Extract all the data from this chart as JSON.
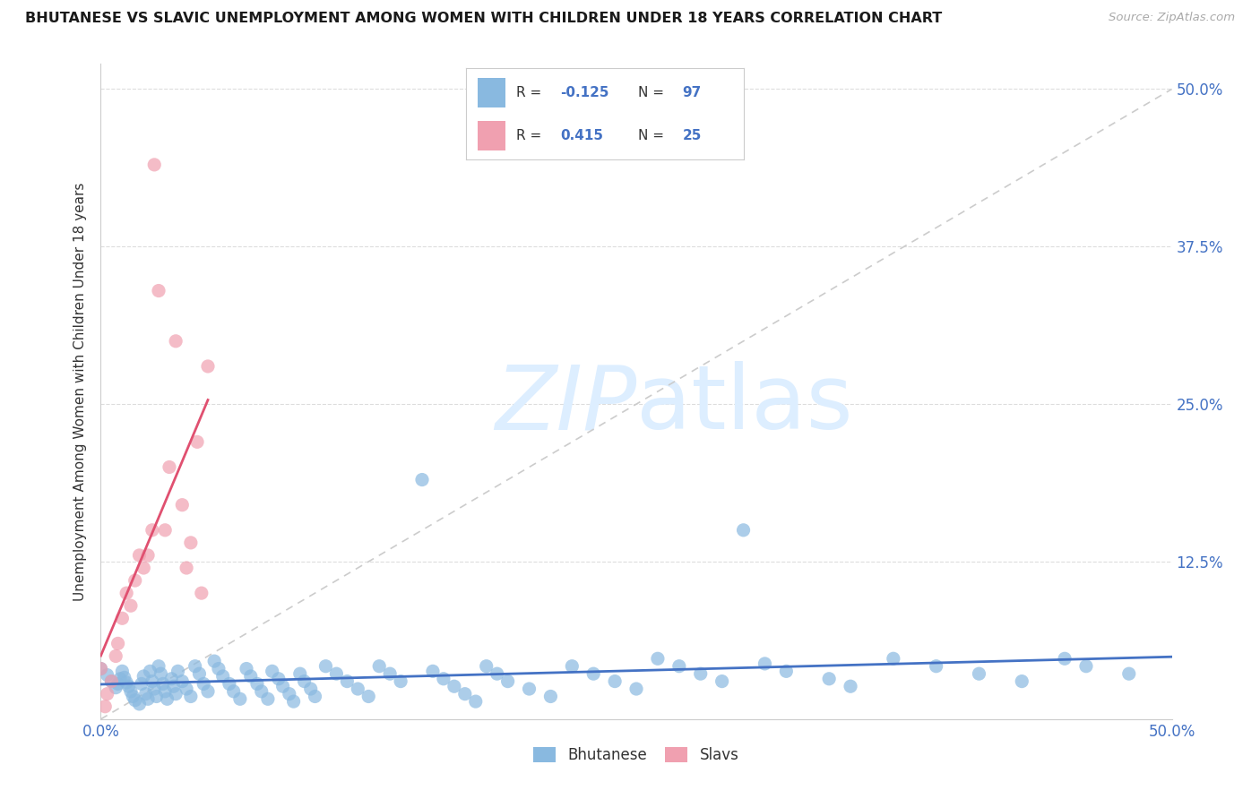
{
  "title": "BHUTANESE VS SLAVIC UNEMPLOYMENT AMONG WOMEN WITH CHILDREN UNDER 18 YEARS CORRELATION CHART",
  "source": "Source: ZipAtlas.com",
  "ylabel": "Unemployment Among Women with Children Under 18 years",
  "xlim": [
    0.0,
    0.5
  ],
  "ylim": [
    0.0,
    0.52
  ],
  "yticks": [
    0.0,
    0.125,
    0.25,
    0.375,
    0.5
  ],
  "ytick_labels_right": [
    "",
    "12.5%",
    "25.0%",
    "37.5%",
    "50.0%"
  ],
  "xtick_vals": [
    0.0,
    0.1,
    0.2,
    0.3,
    0.4,
    0.5
  ],
  "xtick_labels": [
    "0.0%",
    "",
    "",
    "",
    "",
    "50.0%"
  ],
  "blue_color": "#89b9e0",
  "pink_color": "#f0a0b0",
  "blue_line_color": "#4472c4",
  "pink_line_color": "#e05070",
  "diagonal_color": "#cccccc",
  "watermark_color": "#ddeeff",
  "legend_r_blue": "-0.125",
  "legend_n_blue": "97",
  "legend_r_pink": "0.415",
  "legend_n_pink": "25",
  "blue_scatter_x": [
    0.0,
    0.003,
    0.005,
    0.007,
    0.008,
    0.009,
    0.01,
    0.011,
    0.012,
    0.013,
    0.014,
    0.015,
    0.016,
    0.018,
    0.019,
    0.02,
    0.021,
    0.022,
    0.023,
    0.024,
    0.025,
    0.026,
    0.027,
    0.028,
    0.029,
    0.03,
    0.031,
    0.033,
    0.034,
    0.035,
    0.036,
    0.038,
    0.04,
    0.042,
    0.044,
    0.046,
    0.048,
    0.05,
    0.053,
    0.055,
    0.057,
    0.06,
    0.062,
    0.065,
    0.068,
    0.07,
    0.073,
    0.075,
    0.078,
    0.08,
    0.083,
    0.085,
    0.088,
    0.09,
    0.093,
    0.095,
    0.098,
    0.1,
    0.105,
    0.11,
    0.115,
    0.12,
    0.125,
    0.13,
    0.135,
    0.14,
    0.15,
    0.155,
    0.16,
    0.165,
    0.17,
    0.175,
    0.18,
    0.185,
    0.19,
    0.2,
    0.21,
    0.22,
    0.23,
    0.24,
    0.25,
    0.26,
    0.27,
    0.28,
    0.29,
    0.3,
    0.31,
    0.32,
    0.34,
    0.35,
    0.37,
    0.39,
    0.41,
    0.43,
    0.45,
    0.46,
    0.48
  ],
  "blue_scatter_y": [
    0.04,
    0.035,
    0.03,
    0.025,
    0.028,
    0.032,
    0.038,
    0.033,
    0.029,
    0.026,
    0.022,
    0.018,
    0.015,
    0.012,
    0.028,
    0.034,
    0.02,
    0.016,
    0.038,
    0.03,
    0.024,
    0.018,
    0.042,
    0.036,
    0.028,
    0.022,
    0.016,
    0.032,
    0.026,
    0.02,
    0.038,
    0.03,
    0.024,
    0.018,
    0.042,
    0.036,
    0.028,
    0.022,
    0.046,
    0.04,
    0.034,
    0.028,
    0.022,
    0.016,
    0.04,
    0.034,
    0.028,
    0.022,
    0.016,
    0.038,
    0.032,
    0.026,
    0.02,
    0.014,
    0.036,
    0.03,
    0.024,
    0.018,
    0.042,
    0.036,
    0.03,
    0.024,
    0.018,
    0.042,
    0.036,
    0.03,
    0.19,
    0.038,
    0.032,
    0.026,
    0.02,
    0.014,
    0.042,
    0.036,
    0.03,
    0.024,
    0.018,
    0.042,
    0.036,
    0.03,
    0.024,
    0.048,
    0.042,
    0.036,
    0.03,
    0.15,
    0.044,
    0.038,
    0.032,
    0.026,
    0.048,
    0.042,
    0.036,
    0.03,
    0.048,
    0.042,
    0.036
  ],
  "pink_scatter_x": [
    0.0,
    0.002,
    0.003,
    0.005,
    0.007,
    0.008,
    0.01,
    0.012,
    0.014,
    0.016,
    0.018,
    0.02,
    0.022,
    0.024,
    0.025,
    0.027,
    0.03,
    0.032,
    0.035,
    0.038,
    0.04,
    0.042,
    0.045,
    0.047,
    0.05
  ],
  "pink_scatter_y": [
    0.04,
    0.01,
    0.02,
    0.03,
    0.05,
    0.06,
    0.08,
    0.1,
    0.09,
    0.11,
    0.13,
    0.12,
    0.13,
    0.15,
    0.44,
    0.34,
    0.15,
    0.2,
    0.3,
    0.17,
    0.12,
    0.14,
    0.22,
    0.1,
    0.28
  ]
}
